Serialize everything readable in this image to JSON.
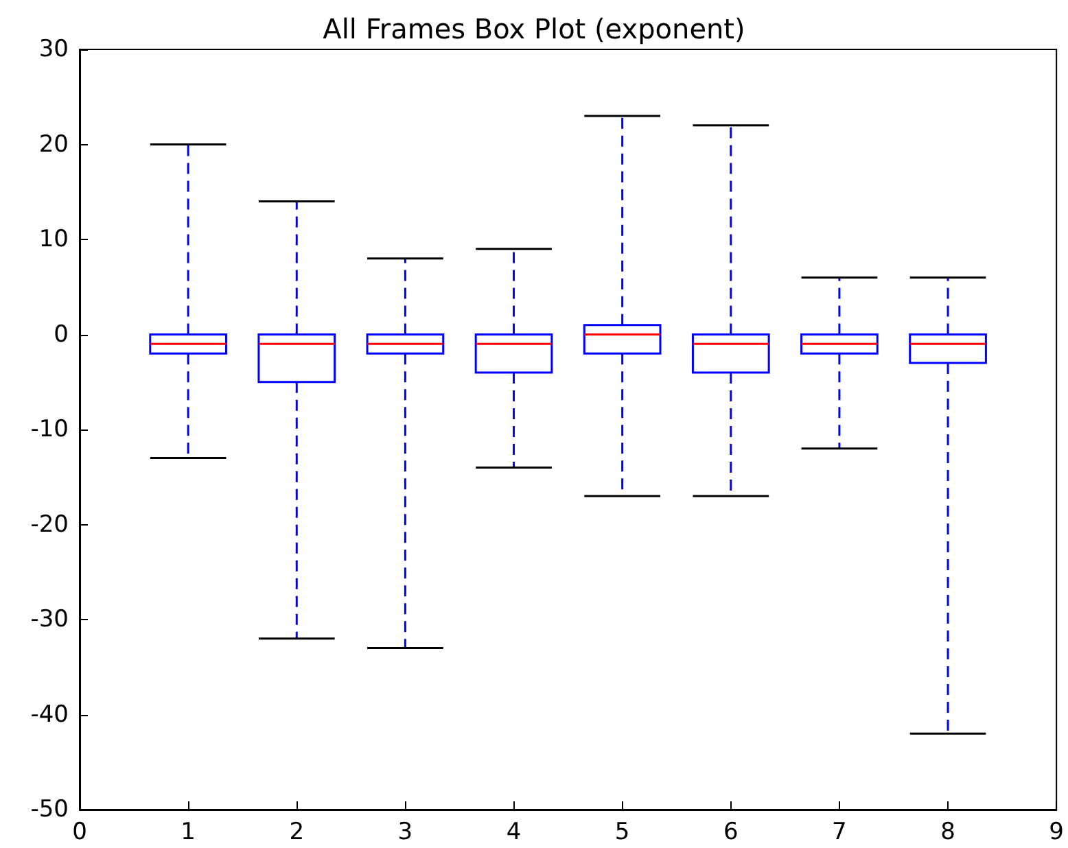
{
  "chart_data": {
    "type": "box",
    "title": "All Frames Box Plot (exponent)",
    "x": [
      1,
      2,
      3,
      4,
      5,
      6,
      7,
      8
    ],
    "boxes": [
      {
        "low": -13,
        "q1": -2,
        "median": -1,
        "q3": 0,
        "high": 20
      },
      {
        "low": -32,
        "q1": -5,
        "median": -1,
        "q3": 0,
        "high": 14
      },
      {
        "low": -33,
        "q1": -2,
        "median": -1,
        "q3": 0,
        "high": 8
      },
      {
        "low": -14,
        "q1": -4,
        "median": -1,
        "q3": 0,
        "high": 9
      },
      {
        "low": -17,
        "q1": -2,
        "median": 0,
        "q3": 1,
        "high": 23
      },
      {
        "low": -17,
        "q1": -4,
        "median": -1,
        "q3": 0,
        "high": 22
      },
      {
        "low": -12,
        "q1": -2,
        "median": -1,
        "q3": 0,
        "high": 6
      },
      {
        "low": -42,
        "q1": -3,
        "median": -1,
        "q3": 0,
        "high": 6
      }
    ],
    "color": "#0000ff",
    "xlim": [
      0,
      9
    ],
    "xticks": [
      0,
      1,
      2,
      3,
      4,
      5,
      6,
      7,
      8,
      9
    ],
    "ylim": [
      -50,
      30
    ],
    "yticks": [
      -50,
      -40,
      -30,
      -20,
      -10,
      0,
      10,
      20,
      30
    ],
    "grid": false,
    "line_style": "dashed"
  }
}
